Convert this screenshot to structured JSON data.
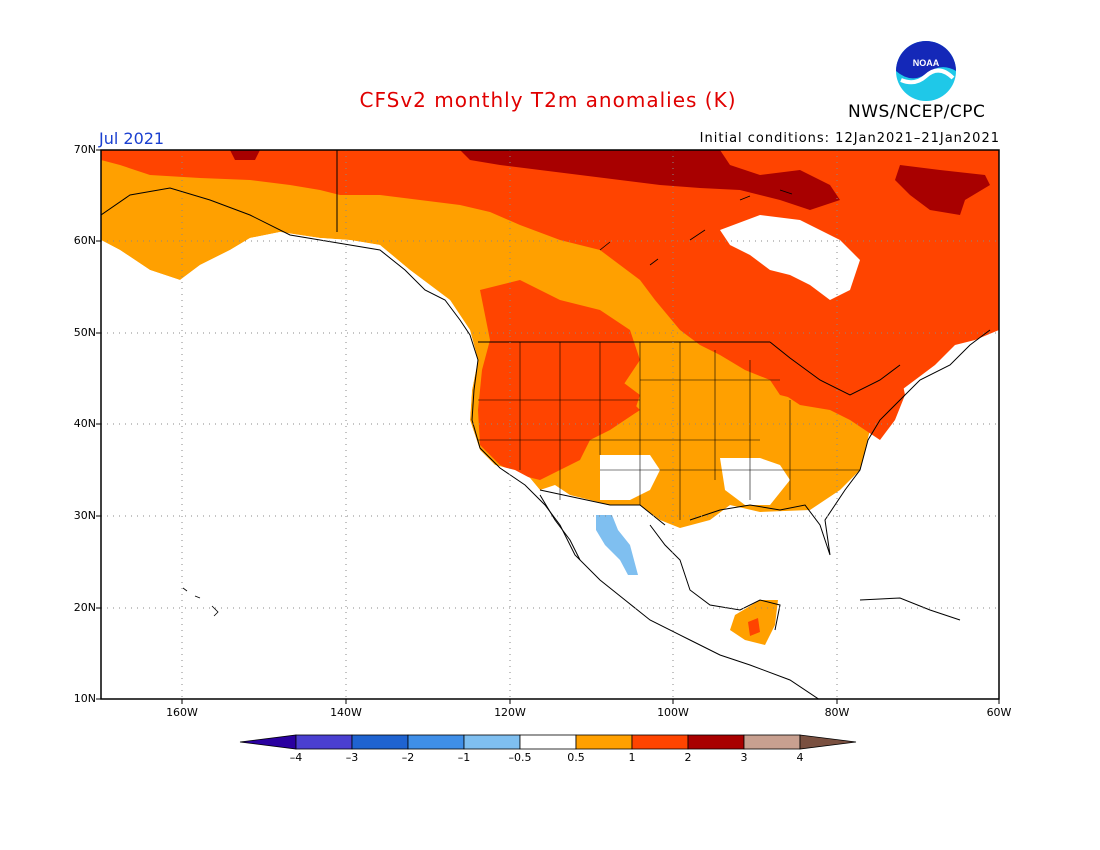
{
  "title": "CFSv2 monthly T2m anomalies (K)",
  "agency": "NWS/NCEP/CPC",
  "logo_text": "NOAA",
  "valid_month": "Jul 2021",
  "initial_conditions": "Initial conditions: 12Jan2021–21Jan2021",
  "colors": {
    "title": "#e00000",
    "month": "#1a3fd0",
    "bins": [
      "#2a00a0",
      "#4a3fd0",
      "#1f63d0",
      "#3f8fe8",
      "#7fbff0",
      "#ffffff",
      "#ffa000",
      "#ff4400",
      "#a80000",
      "#c8a090",
      "#7a5040"
    ]
  },
  "map": {
    "lat_labels": [
      "70N",
      "60N",
      "50N",
      "40N",
      "30N",
      "20N",
      "10N"
    ],
    "lon_labels": [
      "160W",
      "140W",
      "120W",
      "100W",
      "80W",
      "60W"
    ],
    "lon_range": [
      "170W",
      "60W"
    ],
    "lat_range": [
      "10N",
      "70N"
    ]
  },
  "colorbar": {
    "labels": [
      "–4",
      "–3",
      "–2",
      "–1",
      "–0.5",
      "0.5",
      "1",
      "2",
      "3",
      "4"
    ]
  }
}
